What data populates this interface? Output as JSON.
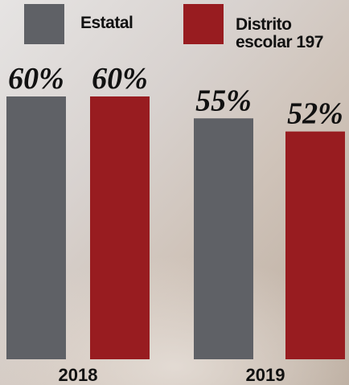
{
  "chart_data": {
    "type": "bar",
    "categories": [
      "2018",
      "2019"
    ],
    "series": [
      {
        "name": "Estatal",
        "color": "#5f6166",
        "values": [
          60,
          55
        ],
        "value_labels": [
          "60%",
          "55%"
        ]
      },
      {
        "name": "Distrito escolar 197",
        "color": "#981c20",
        "values": [
          60,
          52
        ],
        "value_labels": [
          "60%",
          "52%"
        ]
      }
    ],
    "legend": "top"
  }
}
